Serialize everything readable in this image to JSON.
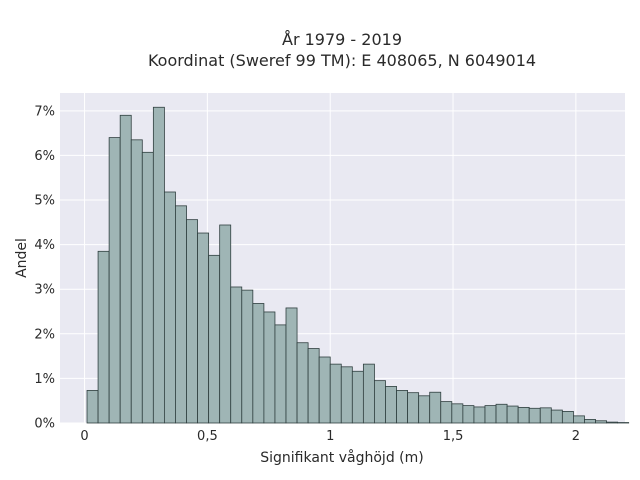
{
  "chart_data": {
    "type": "bar",
    "title_line1": "År 1979 - 2019",
    "title_line2": "Koordinat (Sweref 99 TM): E 408065, N 6049014",
    "xlabel": "Signifikant våghöjd (m)",
    "ylabel": "Andel",
    "xlim": [
      -0.1,
      2.2
    ],
    "ylim": [
      0,
      7.4
    ],
    "x_ticks": [
      {
        "value": 0,
        "label": "0"
      },
      {
        "value": 0.5,
        "label": "0,5"
      },
      {
        "value": 1,
        "label": "1"
      },
      {
        "value": 1.5,
        "label": "1,5"
      },
      {
        "value": 2,
        "label": "2"
      }
    ],
    "y_ticks": [
      {
        "value": 0,
        "label": "0%"
      },
      {
        "value": 1,
        "label": "1%"
      },
      {
        "value": 2,
        "label": "2%"
      },
      {
        "value": 3,
        "label": "3%"
      },
      {
        "value": 4,
        "label": "4%"
      },
      {
        "value": 5,
        "label": "5%"
      },
      {
        "value": 6,
        "label": "6%"
      },
      {
        "value": 7,
        "label": "7%"
      }
    ],
    "bin_start": 0.01,
    "bin_width": 0.045,
    "values": [
      0.73,
      3.85,
      6.4,
      6.9,
      6.35,
      6.07,
      7.08,
      5.18,
      4.87,
      4.56,
      4.26,
      3.76,
      4.44,
      3.05,
      2.98,
      2.68,
      2.49,
      2.2,
      2.58,
      1.8,
      1.67,
      1.48,
      1.32,
      1.26,
      1.16,
      1.32,
      0.95,
      0.82,
      0.73,
      0.68,
      0.61,
      0.69,
      0.48,
      0.43,
      0.39,
      0.36,
      0.39,
      0.42,
      0.38,
      0.35,
      0.33,
      0.34,
      0.29,
      0.26,
      0.16,
      0.08,
      0.05,
      0.02,
      0.01
    ],
    "grid": true,
    "colors": {
      "plot_bg": "#e9e9f2",
      "grid": "#ffffff",
      "bar_fill": "#9fb5b5",
      "bar_stroke": "#2f3f3f"
    }
  }
}
